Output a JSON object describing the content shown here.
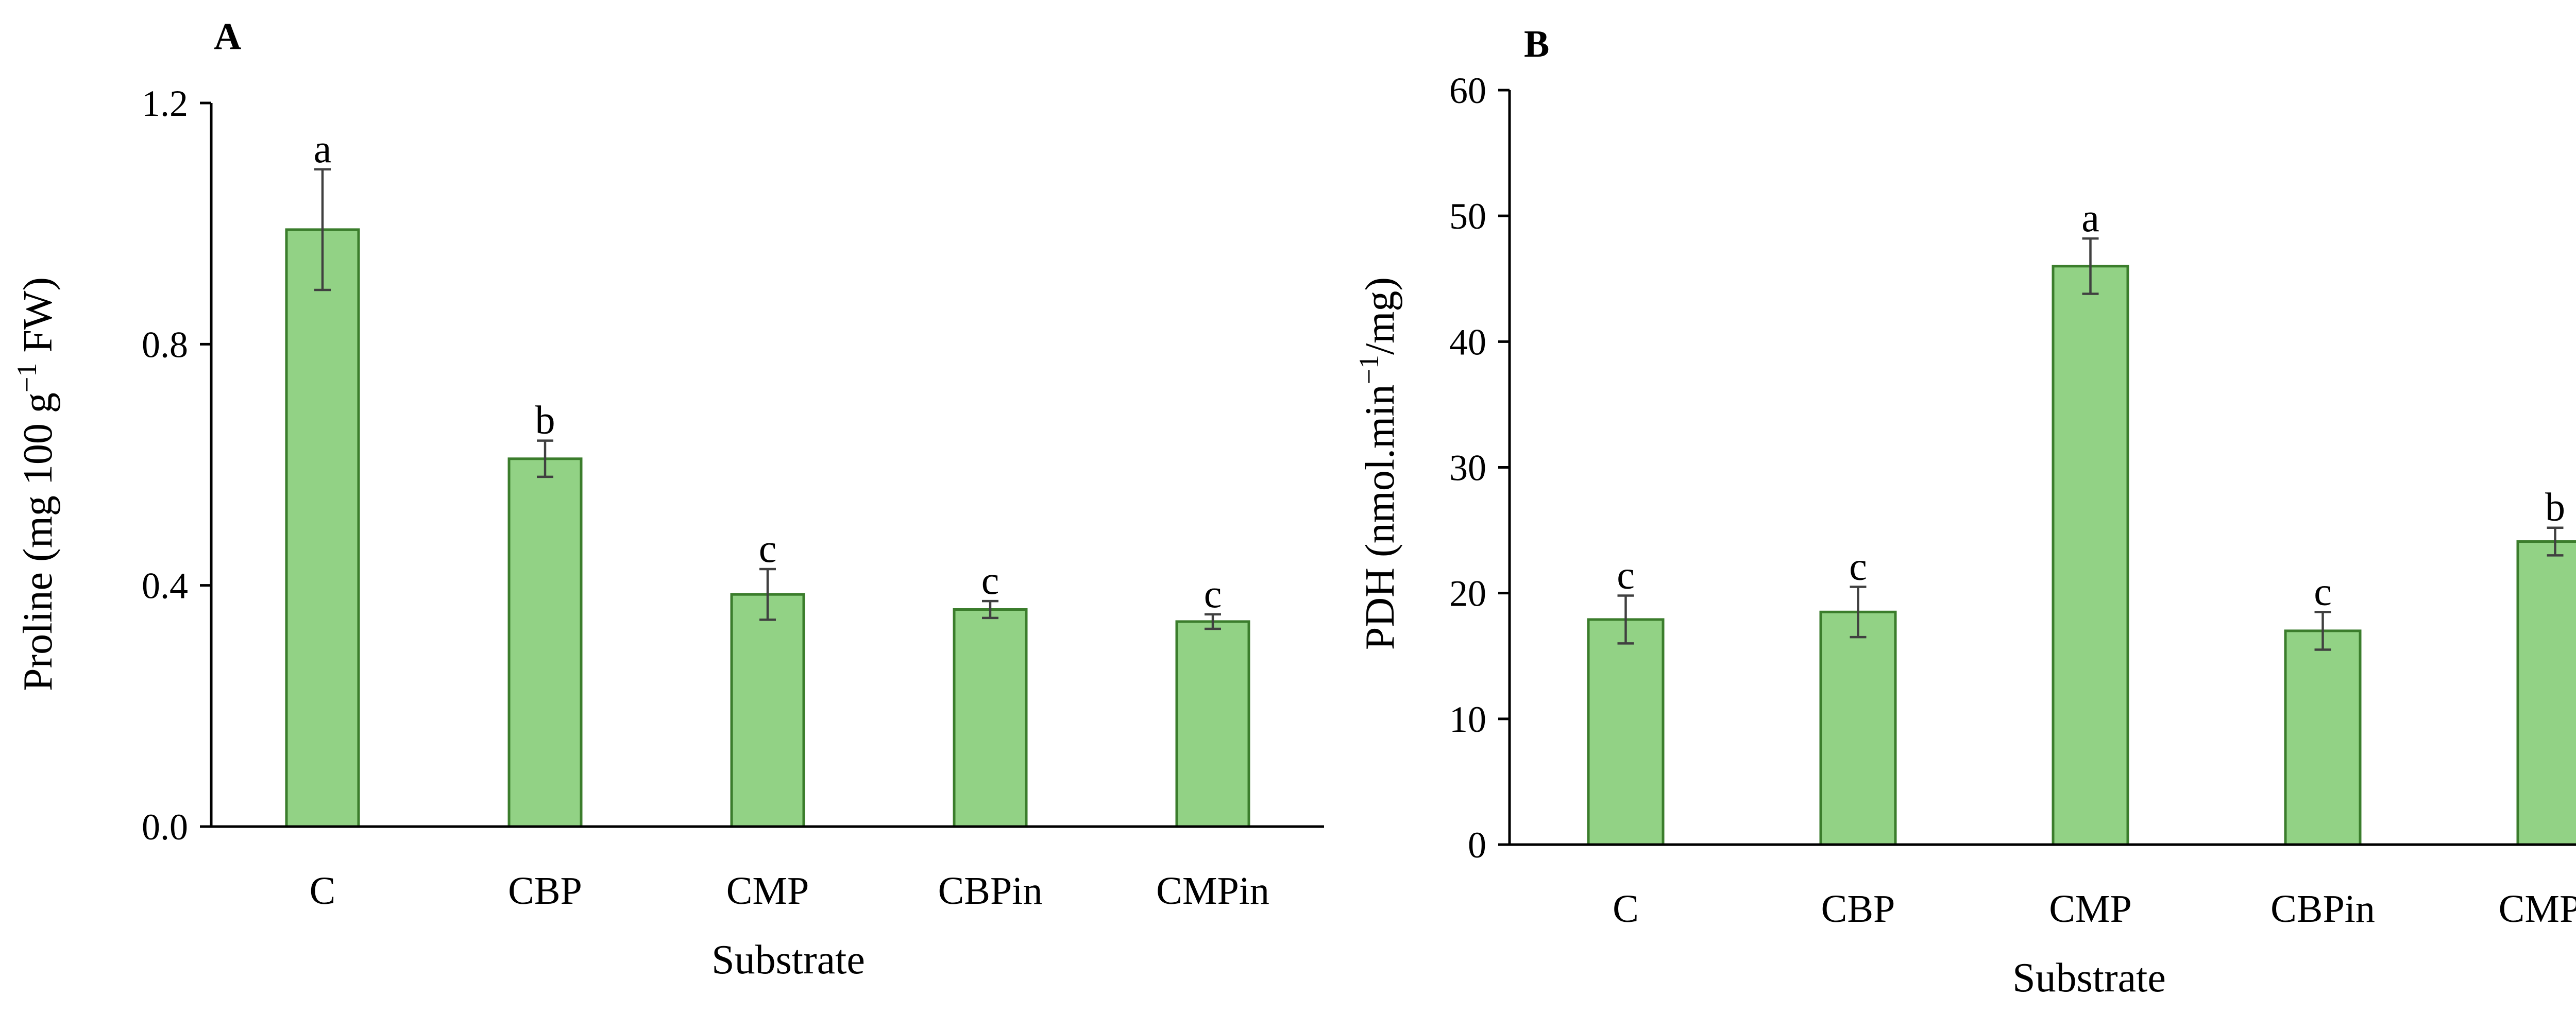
{
  "figure": {
    "bar_fill": "#92d285",
    "bar_stroke": "#3b7d2c",
    "error_color": "#404040"
  },
  "chart_data": [
    {
      "type": "bar",
      "panel_label": "A",
      "categories": [
        "C",
        "CBP",
        "CMP",
        "CBPin",
        "CMPin"
      ],
      "values": [
        0.99,
        0.61,
        0.385,
        0.36,
        0.34
      ],
      "errors": [
        0.1,
        0.03,
        0.042,
        0.014,
        0.012
      ],
      "significance": [
        "a",
        "b",
        "c",
        "c",
        "c"
      ],
      "xlabel": "Substrate",
      "ylabel": "Proline (mg 100 g−1 FW)",
      "ylabel_parts": {
        "pre": "Proline (mg 100 g",
        "sup": "−1",
        "post": " FW)"
      },
      "ylim": [
        0,
        1.2
      ],
      "yticks": [
        0.0,
        0.4,
        0.8,
        1.2
      ],
      "ytick_labels": [
        "0.0",
        "0.4",
        "0.8",
        "1.2"
      ],
      "grid": false,
      "legend": false
    },
    {
      "type": "bar",
      "panel_label": "B",
      "categories": [
        "C",
        "CBP",
        "CMP",
        "CBPin",
        "CMPin"
      ],
      "values": [
        17.9,
        18.5,
        46.0,
        17.0,
        24.1
      ],
      "errors": [
        1.9,
        2.0,
        2.2,
        1.5,
        1.1
      ],
      "significance": [
        "c",
        "c",
        "a",
        "c",
        "b"
      ],
      "xlabel": "Substrate",
      "ylabel": "PDH (nmol.min−1/mg)",
      "ylabel_parts": {
        "pre": "PDH (nmol.min",
        "sup": "−1",
        "post": "/mg)"
      },
      "ylim": [
        0,
        60
      ],
      "yticks": [
        0,
        10,
        20,
        30,
        40,
        50,
        60
      ],
      "ytick_labels": [
        "0",
        "10",
        "20",
        "30",
        "40",
        "50",
        "60"
      ],
      "grid": false,
      "legend": false
    }
  ]
}
